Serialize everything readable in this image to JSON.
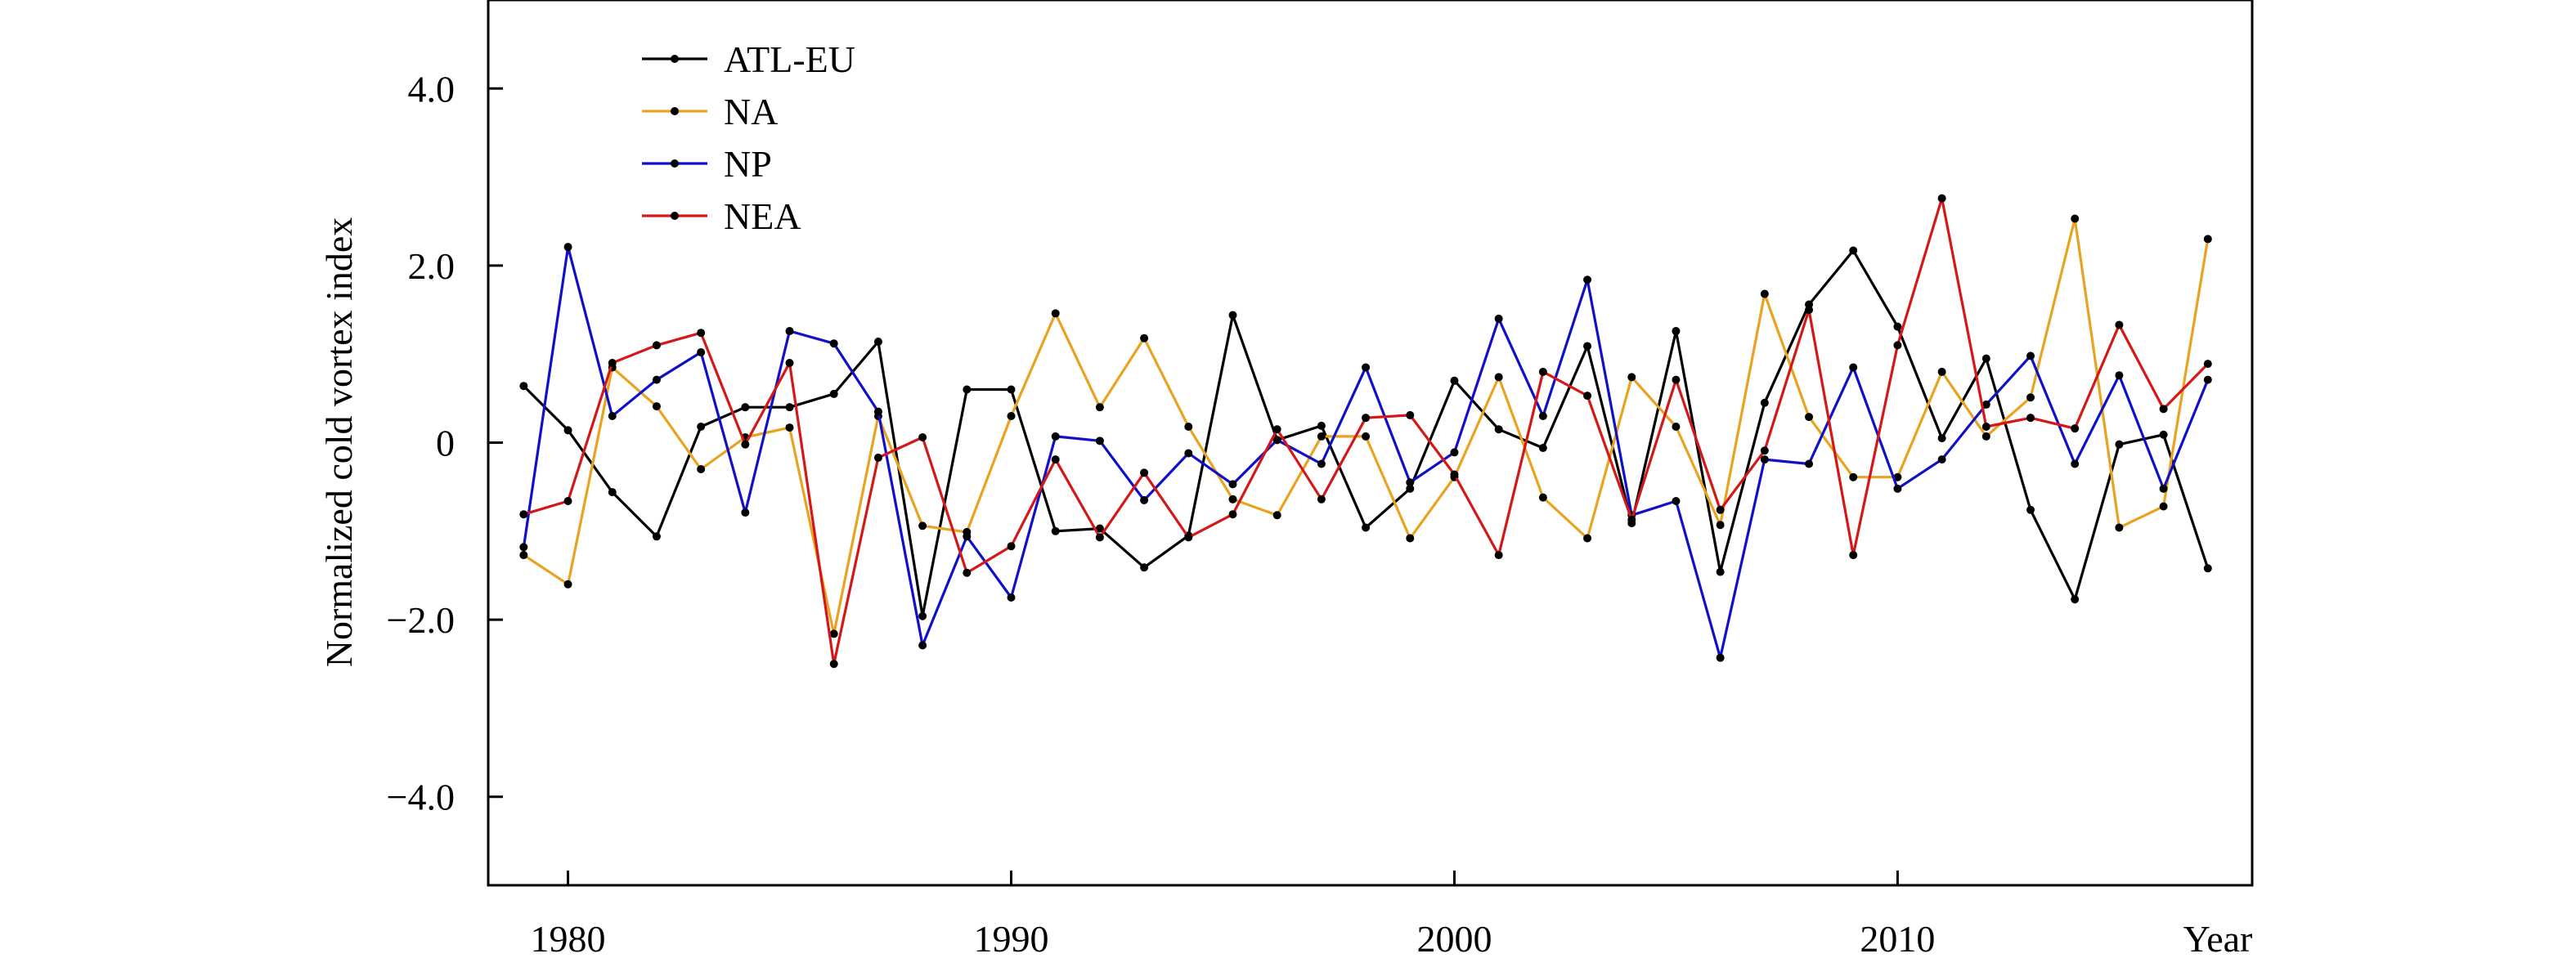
{
  "chart_data": {
    "type": "line",
    "xlabel": "Year",
    "ylabel": "Normalized cold vortex index",
    "xlim": [
      1978.2,
      2018.0
    ],
    "ylim": [
      -5.0,
      5.0
    ],
    "x_ticks": [
      1980,
      1990,
      2000,
      2010
    ],
    "x_tick_labels": [
      "1980",
      "1990",
      "2000",
      "2010"
    ],
    "y_ticks": [
      4.0,
      2.0,
      0,
      -2.0,
      -4.0
    ],
    "y_tick_labels": [
      "4.0",
      "2.0",
      "0",
      "−2.0",
      "−4.0"
    ],
    "grid": false,
    "legend_position": "top-left",
    "x": [
      1979,
      1980,
      1981,
      1982,
      1983,
      1984,
      1985,
      1986,
      1987,
      1988,
      1989,
      1990,
      1991,
      1992,
      1993,
      1994,
      1995,
      1996,
      1997,
      1998,
      1999,
      2000,
      2001,
      2002,
      2003,
      2004,
      2005,
      2006,
      2007,
      2008,
      2009,
      2010,
      2011,
      2012,
      2013,
      2014,
      2015,
      2016,
      2017
    ],
    "series": [
      {
        "name": "ATL-EU",
        "color": "#000000",
        "values": [
          0.64,
          0.14,
          -0.56,
          -1.06,
          0.18,
          0.4,
          0.4,
          0.55,
          1.14,
          -1.96,
          0.6,
          0.6,
          -1.0,
          -0.97,
          -1.41,
          -1.05,
          1.44,
          0.03,
          0.19,
          -0.96,
          -0.52,
          0.7,
          0.15,
          -0.06,
          1.09,
          -0.91,
          1.26,
          -1.46,
          0.45,
          1.56,
          2.17,
          1.31,
          0.05,
          0.95,
          -0.76,
          -1.77,
          -0.02,
          0.09,
          -1.42
        ]
      },
      {
        "name": "NA",
        "color": "#e8a320",
        "values": [
          -1.27,
          -1.6,
          0.85,
          0.41,
          -0.3,
          0.06,
          0.17,
          -2.16,
          0.3,
          -0.94,
          -1.01,
          0.3,
          1.46,
          0.4,
          1.18,
          0.18,
          -0.64,
          -0.82,
          0.07,
          0.07,
          -1.08,
          -0.39,
          0.74,
          -0.62,
          -1.08,
          0.74,
          0.18,
          -0.93,
          1.68,
          0.29,
          -0.39,
          -0.39,
          0.8,
          0.07,
          0.51,
          2.53,
          -0.96,
          -0.72,
          2.3
        ]
      },
      {
        "name": "NP",
        "color": "#1010c8",
        "values": [
          -1.18,
          2.21,
          0.3,
          0.71,
          1.02,
          -0.79,
          1.26,
          1.12,
          0.35,
          -2.29,
          -1.06,
          -1.75,
          0.07,
          0.02,
          -0.65,
          -0.12,
          -0.47,
          0.03,
          -0.24,
          0.85,
          -0.45,
          -0.11,
          1.4,
          0.3,
          1.84,
          -0.82,
          -0.66,
          -2.43,
          -0.19,
          -0.24,
          0.85,
          -0.52,
          -0.19,
          0.43,
          0.98,
          -0.24,
          0.76,
          -0.52,
          0.71
        ]
      },
      {
        "name": "NEA",
        "color": "#d41818",
        "values": [
          -0.81,
          -0.66,
          0.9,
          1.1,
          1.24,
          -0.02,
          0.9,
          -2.5,
          -0.17,
          0.06,
          -1.47,
          -1.17,
          -0.19,
          -1.07,
          -0.34,
          -1.07,
          -0.81,
          0.15,
          -0.64,
          0.28,
          0.31,
          -0.36,
          -1.27,
          0.8,
          0.53,
          -0.87,
          0.71,
          -0.76,
          -0.09,
          1.5,
          -1.27,
          1.1,
          2.76,
          0.18,
          0.28,
          0.16,
          1.33,
          0.38,
          0.89
        ]
      }
    ]
  }
}
